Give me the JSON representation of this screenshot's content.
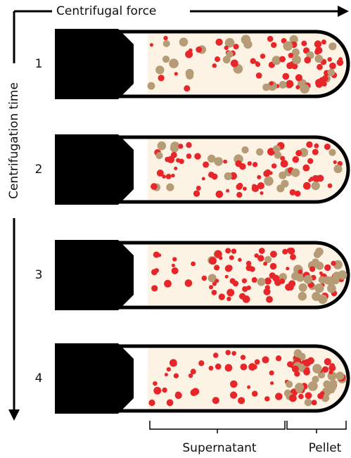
{
  "axes": {
    "x_label": "Centrifugal force",
    "y_label": "Centrifugation time"
  },
  "tubes": [
    {
      "label": "1"
    },
    {
      "label": "2"
    },
    {
      "label": "3"
    },
    {
      "label": "4"
    }
  ],
  "brackets": [
    {
      "label": "Supernatant"
    },
    {
      "label": "Pellet"
    }
  ]
}
